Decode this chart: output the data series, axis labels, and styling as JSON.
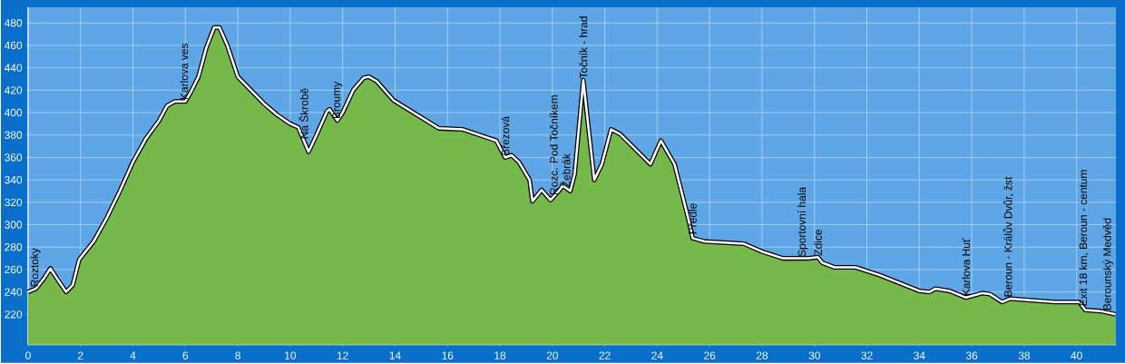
{
  "chart_data": {
    "type": "area",
    "color": "#76b84a",
    "grid": true,
    "x": [
      0,
      0.3,
      0.6,
      0.85,
      1.1,
      1.45,
      1.7,
      1.95,
      2.5,
      3.0,
      3.5,
      4.0,
      4.5,
      5.0,
      5.3,
      5.6,
      6.0,
      6.2,
      6.5,
      6.8,
      7.1,
      7.3,
      7.6,
      8.0,
      8.5,
      9.0,
      9.5,
      10.0,
      10.3,
      10.7,
      11.0,
      11.4,
      11.5,
      11.8,
      12.0,
      12.4,
      12.8,
      13.0,
      13.3,
      13.94,
      15.67,
      16.59,
      17.86,
      18.2,
      18.44,
      18.72,
      19.13,
      19.24,
      19.59,
      19.93,
      20.28,
      20.39,
      20.68,
      20.85,
      21.18,
      21.37,
      21.6,
      21.89,
      22.24,
      22.58,
      23.74,
      24.14,
      24.66,
      25.18,
      25.35,
      25.81,
      27.31,
      28.0,
      28.8,
      29.78,
      30.13,
      30.3,
      30.76,
      31.57,
      32.49,
      33.99,
      34.39,
      34.62,
      35.14,
      35.78,
      36.41,
      36.7,
      37.16,
      37.45,
      38.02,
      39.17,
      40.1,
      40.33,
      40.9,
      41.48
    ],
    "values": [
      240,
      243,
      252,
      261,
      252,
      240,
      246,
      269,
      285,
      306,
      330,
      356,
      377,
      393,
      406,
      410,
      410,
      418,
      432,
      458,
      476,
      476,
      460,
      432,
      420,
      408,
      398,
      390,
      387,
      365,
      380,
      401,
      403,
      393,
      400,
      420,
      431,
      432,
      428,
      411,
      386,
      385,
      375,
      360,
      362,
      356,
      340,
      321,
      331,
      322,
      331,
      335,
      330,
      345,
      429,
      388,
      340,
      354,
      385,
      381,
      354,
      375,
      354,
      306,
      288,
      285,
      283,
      276,
      270,
      270,
      271,
      266,
      262,
      262,
      255,
      241,
      240,
      243,
      241,
      235,
      239,
      238,
      231,
      234,
      233,
      231,
      231,
      224,
      223,
      220
    ],
    "xlim": [
      0,
      41.5
    ],
    "ylim": [
      193,
      494
    ],
    "xticks": [
      0,
      2,
      4,
      6,
      8,
      10,
      12,
      14,
      16,
      18,
      20,
      22,
      24,
      26,
      28,
      30,
      32,
      34,
      36,
      38,
      40
    ],
    "yticks": [
      220,
      240,
      260,
      280,
      300,
      320,
      340,
      360,
      380,
      400,
      420,
      440,
      460,
      480
    ],
    "annotations": [
      {
        "text": "Roztoky",
        "x": 0.28,
        "y": 243
      },
      {
        "text": "Karlova ves",
        "x": 5.95,
        "y": 410
      },
      {
        "text": "Na Škrobě",
        "x": 10.5,
        "y": 375
      },
      {
        "text": "Broumy",
        "x": 11.8,
        "y": 393
      },
      {
        "text": "Březová",
        "x": 18.2,
        "y": 360
      },
      {
        "text": "Rozc. Pod Točníkem",
        "x": 20.05,
        "y": 325
      },
      {
        "text": "Žebrák",
        "x": 20.5,
        "y": 332
      },
      {
        "text": "Točník - hrad",
        "x": 21.18,
        "y": 429
      },
      {
        "text": "Předle",
        "x": 25.35,
        "y": 290
      },
      {
        "text": "Sportovní hala",
        "x": 29.55,
        "y": 270
      },
      {
        "text": "Zdice",
        "x": 30.13,
        "y": 271
      },
      {
        "text": "Karlova Huť",
        "x": 35.78,
        "y": 235
      },
      {
        "text": "Beroun - Králův Dvůr, žst",
        "x": 37.39,
        "y": 234
      },
      {
        "text": "Exit 18 km, Beroun - centum",
        "x": 40.27,
        "y": 226
      },
      {
        "text": "Berounský Medvěd",
        "x": 41.2,
        "y": 222
      }
    ]
  }
}
